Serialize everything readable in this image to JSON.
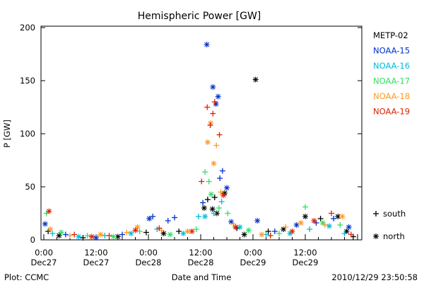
{
  "chart_data": {
    "type": "scatter",
    "title": "Hemispheric Power [GW]",
    "xlabel": "Date and Time",
    "ylabel": "P [GW]",
    "ylim": [
      0,
      200
    ],
    "yticks": [
      0,
      50,
      100,
      150,
      200
    ],
    "x_unit": "hours since 2010-12-27 00:00 UT",
    "xlim": [
      0,
      72
    ],
    "xticks": [
      {
        "x": 0,
        "time": "0:00",
        "date": "Dec27"
      },
      {
        "x": 12,
        "time": "12:00",
        "date": "Dec27"
      },
      {
        "x": 24,
        "time": "0:00",
        "date": "Dec28"
      },
      {
        "x": 36,
        "time": "12:00",
        "date": "Dec28"
      },
      {
        "x": 48,
        "time": "0:00",
        "date": "Dec29"
      },
      {
        "x": 60,
        "time": "12:00",
        "date": "Dec29"
      }
    ],
    "grid": false,
    "legend_position": "right",
    "markers": [
      {
        "symbol": "+",
        "label": "south"
      },
      {
        "symbol": "*",
        "label": "north"
      }
    ],
    "series": [
      {
        "name": "METP-02",
        "color": "#000000",
        "points": [
          {
            "x": 1.0,
            "y": 8,
            "m": "+"
          },
          {
            "x": 3.5,
            "y": 4,
            "m": "*"
          },
          {
            "x": 9.0,
            "y": 2,
            "m": "+"
          },
          {
            "x": 17.0,
            "y": 3,
            "m": "*"
          },
          {
            "x": 23.5,
            "y": 7,
            "m": "+"
          },
          {
            "x": 27.5,
            "y": 6,
            "m": "*"
          },
          {
            "x": 31.0,
            "y": 8,
            "m": "+"
          },
          {
            "x": 36.8,
            "y": 30,
            "m": "*"
          },
          {
            "x": 37.6,
            "y": 38,
            "m": "+"
          },
          {
            "x": 38.7,
            "y": 29,
            "m": "*"
          },
          {
            "x": 39.2,
            "y": 40,
            "m": "+"
          },
          {
            "x": 39.7,
            "y": 25,
            "m": "*"
          },
          {
            "x": 41.5,
            "y": 44,
            "m": "*"
          },
          {
            "x": 44.3,
            "y": 11,
            "m": "+"
          },
          {
            "x": 46.0,
            "y": 5,
            "m": "*"
          },
          {
            "x": 48.6,
            "y": 151,
            "m": "*"
          },
          {
            "x": 51.5,
            "y": 8,
            "m": "+"
          },
          {
            "x": 55.0,
            "y": 10,
            "m": "*"
          },
          {
            "x": 60.0,
            "y": 22,
            "m": "*"
          },
          {
            "x": 63.5,
            "y": 20,
            "m": "+"
          },
          {
            "x": 67.5,
            "y": 22,
            "m": "*"
          },
          {
            "x": 69.5,
            "y": 8,
            "m": "*"
          },
          {
            "x": 71.0,
            "y": 3,
            "m": "+"
          }
        ]
      },
      {
        "name": "NOAA-15",
        "color": "#0033cc",
        "points": [
          {
            "x": 0.3,
            "y": 15,
            "m": "*"
          },
          {
            "x": 5.0,
            "y": 5,
            "m": "+"
          },
          {
            "x": 12.0,
            "y": 2,
            "m": "*"
          },
          {
            "x": 18.0,
            "y": 5,
            "m": "+"
          },
          {
            "x": 24.2,
            "y": 20,
            "m": "*"
          },
          {
            "x": 25.0,
            "y": 22,
            "m": "+"
          },
          {
            "x": 28.5,
            "y": 18,
            "m": "+"
          },
          {
            "x": 30.0,
            "y": 21,
            "m": "+"
          },
          {
            "x": 36.5,
            "y": 35,
            "m": "+"
          },
          {
            "x": 37.4,
            "y": 184,
            "m": "*"
          },
          {
            "x": 38.8,
            "y": 144,
            "m": "*"
          },
          {
            "x": 39.5,
            "y": 128,
            "m": "*"
          },
          {
            "x": 40.0,
            "y": 135,
            "m": "*"
          },
          {
            "x": 40.4,
            "y": 58,
            "m": "+"
          },
          {
            "x": 41.0,
            "y": 65,
            "m": "+"
          },
          {
            "x": 42.0,
            "y": 49,
            "m": "*"
          },
          {
            "x": 43.0,
            "y": 17,
            "m": "*"
          },
          {
            "x": 49.0,
            "y": 18,
            "m": "*"
          },
          {
            "x": 53.0,
            "y": 8,
            "m": "+"
          },
          {
            "x": 58.0,
            "y": 14,
            "m": "*"
          },
          {
            "x": 62.5,
            "y": 16,
            "m": "+"
          },
          {
            "x": 66.5,
            "y": 20,
            "m": "+"
          },
          {
            "x": 70.0,
            "y": 12,
            "m": "*"
          }
        ]
      },
      {
        "name": "NOAA-16",
        "color": "#00bbdd",
        "points": [
          {
            "x": 2.0,
            "y": 6,
            "m": "+"
          },
          {
            "x": 8.0,
            "y": 3,
            "m": "*"
          },
          {
            "x": 14.0,
            "y": 4,
            "m": "+"
          },
          {
            "x": 20.0,
            "y": 6,
            "m": "*"
          },
          {
            "x": 26.0,
            "y": 10,
            "m": "+"
          },
          {
            "x": 32.0,
            "y": 6,
            "m": "*"
          },
          {
            "x": 35.5,
            "y": 22,
            "m": "+"
          },
          {
            "x": 37.0,
            "y": 22,
            "m": "*"
          },
          {
            "x": 39.0,
            "y": 25,
            "m": "+"
          },
          {
            "x": 40.8,
            "y": 36,
            "m": "+"
          },
          {
            "x": 45.0,
            "y": 12,
            "m": "*"
          },
          {
            "x": 51.0,
            "y": 5,
            "m": "+"
          },
          {
            "x": 56.5,
            "y": 6,
            "m": "*"
          },
          {
            "x": 61.0,
            "y": 10,
            "m": "+"
          },
          {
            "x": 65.5,
            "y": 13,
            "m": "*"
          },
          {
            "x": 69.0,
            "y": 6,
            "m": "+"
          }
        ]
      },
      {
        "name": "NOAA-17",
        "color": "#33dd66",
        "points": [
          {
            "x": 0.6,
            "y": 25,
            "m": "+"
          },
          {
            "x": 4.0,
            "y": 7,
            "m": "*"
          },
          {
            "x": 10.0,
            "y": 4,
            "m": "+"
          },
          {
            "x": 16.0,
            "y": 3,
            "m": "*"
          },
          {
            "x": 22.0,
            "y": 8,
            "m": "+"
          },
          {
            "x": 29.0,
            "y": 5,
            "m": "*"
          },
          {
            "x": 35.0,
            "y": 10,
            "m": "+"
          },
          {
            "x": 37.0,
            "y": 64,
            "m": "+"
          },
          {
            "x": 37.9,
            "y": 55,
            "m": "+"
          },
          {
            "x": 38.4,
            "y": 43,
            "m": "*"
          },
          {
            "x": 40.2,
            "y": 30,
            "m": "+"
          },
          {
            "x": 42.2,
            "y": 25,
            "m": "+"
          },
          {
            "x": 47.0,
            "y": 9,
            "m": "*"
          },
          {
            "x": 54.0,
            "y": 6,
            "m": "+"
          },
          {
            "x": 60.0,
            "y": 31,
            "m": "+"
          },
          {
            "x": 64.0,
            "y": 16,
            "m": "*"
          },
          {
            "x": 68.0,
            "y": 14,
            "m": "+"
          }
        ]
      },
      {
        "name": "NOAA-18",
        "color": "#ff9922",
        "points": [
          {
            "x": 1.5,
            "y": 10,
            "m": "*"
          },
          {
            "x": 6.0,
            "y": 4,
            "m": "+"
          },
          {
            "x": 13.0,
            "y": 5,
            "m": "*"
          },
          {
            "x": 19.0,
            "y": 7,
            "m": "+"
          },
          {
            "x": 21.5,
            "y": 12,
            "m": "*"
          },
          {
            "x": 27.0,
            "y": 9,
            "m": "+"
          },
          {
            "x": 33.0,
            "y": 8,
            "m": "*"
          },
          {
            "x": 37.6,
            "y": 92,
            "m": "*"
          },
          {
            "x": 38.3,
            "y": 110,
            "m": "*"
          },
          {
            "x": 39.0,
            "y": 72,
            "m": "*"
          },
          {
            "x": 39.6,
            "y": 89,
            "m": "+"
          },
          {
            "x": 40.6,
            "y": 45,
            "m": "+"
          },
          {
            "x": 43.5,
            "y": 15,
            "m": "+"
          },
          {
            "x": 50.0,
            "y": 5,
            "m": "*"
          },
          {
            "x": 55.5,
            "y": 12,
            "m": "+"
          },
          {
            "x": 59.0,
            "y": 16,
            "m": "*"
          },
          {
            "x": 64.5,
            "y": 14,
            "m": "+"
          },
          {
            "x": 68.5,
            "y": 22,
            "m": "*"
          }
        ]
      },
      {
        "name": "NOAA-19",
        "color": "#dd2200",
        "points": [
          {
            "x": 1.2,
            "y": 27,
            "m": "*"
          },
          {
            "x": 7.0,
            "y": 5,
            "m": "+"
          },
          {
            "x": 11.0,
            "y": 3,
            "m": "*"
          },
          {
            "x": 15.0,
            "y": 4,
            "m": "+"
          },
          {
            "x": 21.0,
            "y": 9,
            "m": "*"
          },
          {
            "x": 26.5,
            "y": 11,
            "m": "+"
          },
          {
            "x": 34.0,
            "y": 8,
            "m": "*"
          },
          {
            "x": 36.2,
            "y": 55,
            "m": "+"
          },
          {
            "x": 37.5,
            "y": 125,
            "m": "+"
          },
          {
            "x": 38.2,
            "y": 108,
            "m": "+"
          },
          {
            "x": 38.8,
            "y": 119,
            "m": "+"
          },
          {
            "x": 39.2,
            "y": 130,
            "m": "+"
          },
          {
            "x": 40.3,
            "y": 99,
            "m": "+"
          },
          {
            "x": 41.2,
            "y": 42,
            "m": "*"
          },
          {
            "x": 44.0,
            "y": 12,
            "m": "*"
          },
          {
            "x": 52.0,
            "y": 4,
            "m": "+"
          },
          {
            "x": 57.0,
            "y": 8,
            "m": "*"
          },
          {
            "x": 62.0,
            "y": 18,
            "m": "*"
          },
          {
            "x": 66.0,
            "y": 25,
            "m": "+"
          },
          {
            "x": 70.5,
            "y": 5,
            "m": "+"
          }
        ]
      }
    ]
  },
  "footer": {
    "plot_credit": "Plot: CCMC",
    "timestamp": "2010/12/29 23:50:58"
  }
}
